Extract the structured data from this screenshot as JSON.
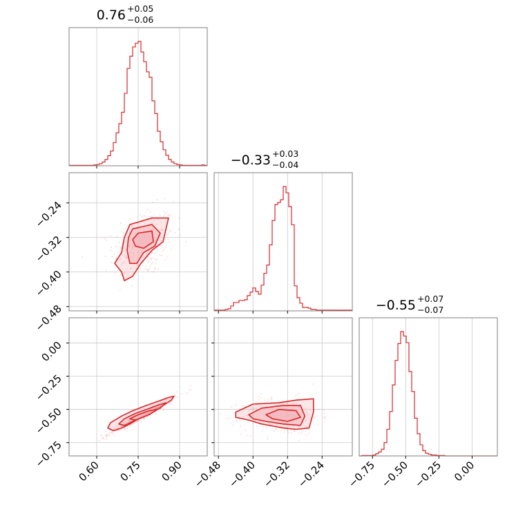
{
  "chart_data": {
    "type": "corner",
    "color": "#d62728",
    "fill_color": "#f4b6bc",
    "grid": true,
    "parameters": [
      {
        "title": {
          "median": "0.76",
          "plus": "+0.05",
          "minus": "−0.06"
        },
        "range": [
          0.5,
          1.0
        ],
        "ticks": [
          0.6,
          0.75,
          0.9
        ],
        "tick_labels": [
          "0.60",
          "0.75",
          "0.90"
        ]
      },
      {
        "title": {
          "median": "−0.33",
          "plus": "+0.03",
          "minus": "−0.04"
        },
        "range": [
          -0.49,
          -0.17
        ],
        "ticks": [
          -0.48,
          -0.4,
          -0.32,
          -0.24
        ],
        "tick_labels": [
          "−0.48",
          "−0.40",
          "−0.32",
          "−0.24"
        ]
      },
      {
        "title": {
          "median": "−0.55",
          "plus": "+0.07",
          "minus": "−0.07"
        },
        "range": [
          -0.85,
          0.19
        ],
        "ticks": [
          -0.75,
          -0.5,
          -0.25,
          0.0
        ],
        "tick_labels": [
          "−0.75",
          "−0.50",
          "−0.25",
          "0.00"
        ]
      }
    ],
    "histograms": [
      {
        "param": 0,
        "x_start": 0.5,
        "x_end": 1.0,
        "counts": [
          1,
          1,
          1,
          1,
          1,
          1,
          1,
          1,
          1,
          2,
          3,
          5,
          9,
          15,
          24,
          35,
          55,
          78,
          100,
          127,
          172,
          231,
          260,
          282,
          291,
          295,
          270,
          247,
          223,
          210,
          154,
          124,
          82,
          57,
          38,
          25,
          15,
          9,
          5,
          3,
          2,
          1,
          1,
          1,
          1,
          1,
          1,
          1,
          2,
          1
        ]
      },
      {
        "param": 1,
        "x_start": -0.49,
        "x_end": -0.17,
        "counts": [
          1,
          1,
          1,
          1,
          2,
          3,
          7,
          12,
          12,
          15,
          15,
          16,
          22,
          27,
          33,
          28,
          24,
          37,
          54,
          66,
          95,
          130,
          153,
          156,
          160,
          179,
          170,
          150,
          124,
          36,
          19,
          11,
          5,
          5,
          4,
          2,
          2,
          1,
          1,
          1,
          1,
          1,
          1,
          1,
          1,
          1,
          1,
          1,
          1,
          1
        ]
      },
      {
        "param": 2,
        "x_start": -0.85,
        "x_end": 0.19,
        "counts": [
          0,
          1,
          1,
          1,
          1,
          2,
          5,
          9,
          15,
          30,
          60,
          100,
          160,
          215,
          253,
          280,
          270,
          255,
          190,
          145,
          85,
          50,
          25,
          12,
          6,
          4,
          2,
          2,
          1,
          1,
          1,
          0,
          0,
          0,
          0,
          0,
          0,
          0,
          0,
          0,
          0,
          0,
          0,
          0,
          0,
          0,
          0,
          0,
          0,
          0
        ]
      }
    ],
    "scatter_panels": [
      {
        "x_param": 0,
        "y_param": 1,
        "center": [
          0.77,
          -0.335
        ],
        "spread": [
          0.055,
          0.04
        ],
        "correlation": 0.3,
        "contours_data": [
          [
            [
              0.72,
              -0.29
            ],
            [
              0.8,
              -0.275
            ],
            [
              0.86,
              -0.275
            ],
            [
              0.84,
              -0.33
            ],
            [
              0.8,
              -0.35
            ],
            [
              0.76,
              -0.38
            ],
            [
              0.73,
              -0.41
            ],
            [
              0.7,
              -0.42
            ],
            [
              0.69,
              -0.4
            ],
            [
              0.665,
              -0.38
            ],
            [
              0.69,
              -0.355
            ],
            [
              0.7,
              -0.32
            ]
          ],
          [
            [
              0.73,
              -0.3
            ],
            [
              0.8,
              -0.29
            ],
            [
              0.83,
              -0.31
            ],
            [
              0.81,
              -0.34
            ],
            [
              0.77,
              -0.355
            ],
            [
              0.745,
              -0.38
            ],
            [
              0.72,
              -0.38
            ],
            [
              0.71,
              -0.35
            ],
            [
              0.715,
              -0.32
            ]
          ],
          [
            [
              0.75,
              -0.31
            ],
            [
              0.8,
              -0.305
            ],
            [
              0.805,
              -0.33
            ],
            [
              0.77,
              -0.345
            ],
            [
              0.74,
              -0.34
            ],
            [
              0.73,
              -0.325
            ]
          ]
        ]
      },
      {
        "x_param": 0,
        "y_param": 2,
        "center": [
          0.76,
          -0.55
        ],
        "spread": [
          0.06,
          0.07
        ],
        "correlation": 0.97,
        "contours_data": [
          [
            [
              0.66,
              -0.66
            ],
            [
              0.69,
              -0.64
            ],
            [
              0.72,
              -0.61
            ],
            [
              0.76,
              -0.56
            ],
            [
              0.8,
              -0.51
            ],
            [
              0.84,
              -0.47
            ],
            [
              0.87,
              -0.43
            ],
            [
              0.88,
              -0.4
            ],
            [
              0.86,
              -0.41
            ],
            [
              0.82,
              -0.44
            ],
            [
              0.78,
              -0.47
            ],
            [
              0.73,
              -0.51
            ],
            [
              0.69,
              -0.55
            ],
            [
              0.65,
              -0.6
            ],
            [
              0.64,
              -0.64
            ]
          ],
          [
            [
              0.7,
              -0.62
            ],
            [
              0.75,
              -0.57
            ],
            [
              0.79,
              -0.53
            ],
            [
              0.83,
              -0.49
            ],
            [
              0.85,
              -0.45
            ],
            [
              0.82,
              -0.47
            ],
            [
              0.78,
              -0.5
            ],
            [
              0.74,
              -0.53
            ],
            [
              0.7,
              -0.57
            ],
            [
              0.68,
              -0.61
            ]
          ],
          [
            [
              0.74,
              -0.58
            ],
            [
              0.79,
              -0.54
            ],
            [
              0.82,
              -0.5
            ],
            [
              0.79,
              -0.51
            ],
            [
              0.75,
              -0.54
            ],
            [
              0.72,
              -0.57
            ]
          ]
        ]
      },
      {
        "x_param": 1,
        "y_param": 2,
        "center": [
          -0.335,
          -0.55
        ],
        "spread": [
          0.045,
          0.07
        ],
        "correlation": 0.0,
        "contours_data": [
          [
            [
              -0.44,
              -0.52
            ],
            [
              -0.4,
              -0.46
            ],
            [
              -0.34,
              -0.45
            ],
            [
              -0.3,
              -0.43
            ],
            [
              -0.26,
              -0.42
            ],
            [
              -0.26,
              -0.52
            ],
            [
              -0.27,
              -0.64
            ],
            [
              -0.3,
              -0.65
            ],
            [
              -0.33,
              -0.64
            ],
            [
              -0.38,
              -0.61
            ],
            [
              -0.41,
              -0.58
            ],
            [
              -0.44,
              -0.56
            ]
          ],
          [
            [
              -0.41,
              -0.54
            ],
            [
              -0.38,
              -0.49
            ],
            [
              -0.33,
              -0.47
            ],
            [
              -0.29,
              -0.47
            ],
            [
              -0.28,
              -0.55
            ],
            [
              -0.29,
              -0.62
            ],
            [
              -0.33,
              -0.61
            ],
            [
              -0.37,
              -0.59
            ],
            [
              -0.4,
              -0.57
            ]
          ],
          [
            [
              -0.37,
              -0.54
            ],
            [
              -0.34,
              -0.5
            ],
            [
              -0.3,
              -0.51
            ],
            [
              -0.29,
              -0.56
            ],
            [
              -0.32,
              -0.59
            ],
            [
              -0.355,
              -0.57
            ]
          ]
        ]
      }
    ]
  }
}
